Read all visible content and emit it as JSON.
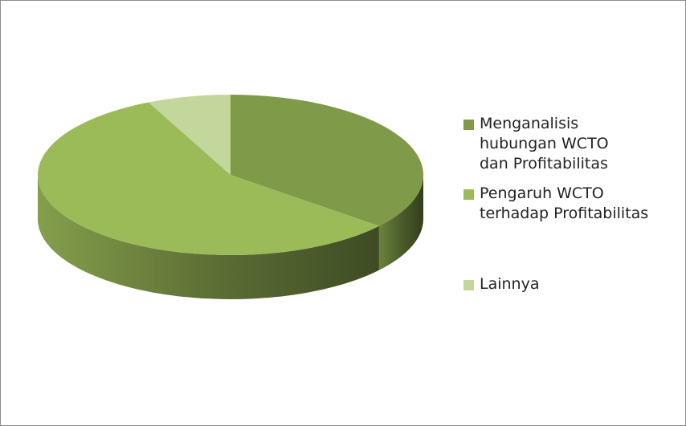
{
  "chart_data": {
    "type": "pie3d",
    "categories": [
      "Menganalisis hubungan WCTO dan Profitabilitas",
      "Pengaruh WCTO terhadap Profitabilitas",
      "Lainnya"
    ],
    "values": [
      36,
      57,
      7
    ],
    "colors": [
      "#7f9a48",
      "#9bbb59",
      "#c3d69b"
    ],
    "legend": "right"
  }
}
